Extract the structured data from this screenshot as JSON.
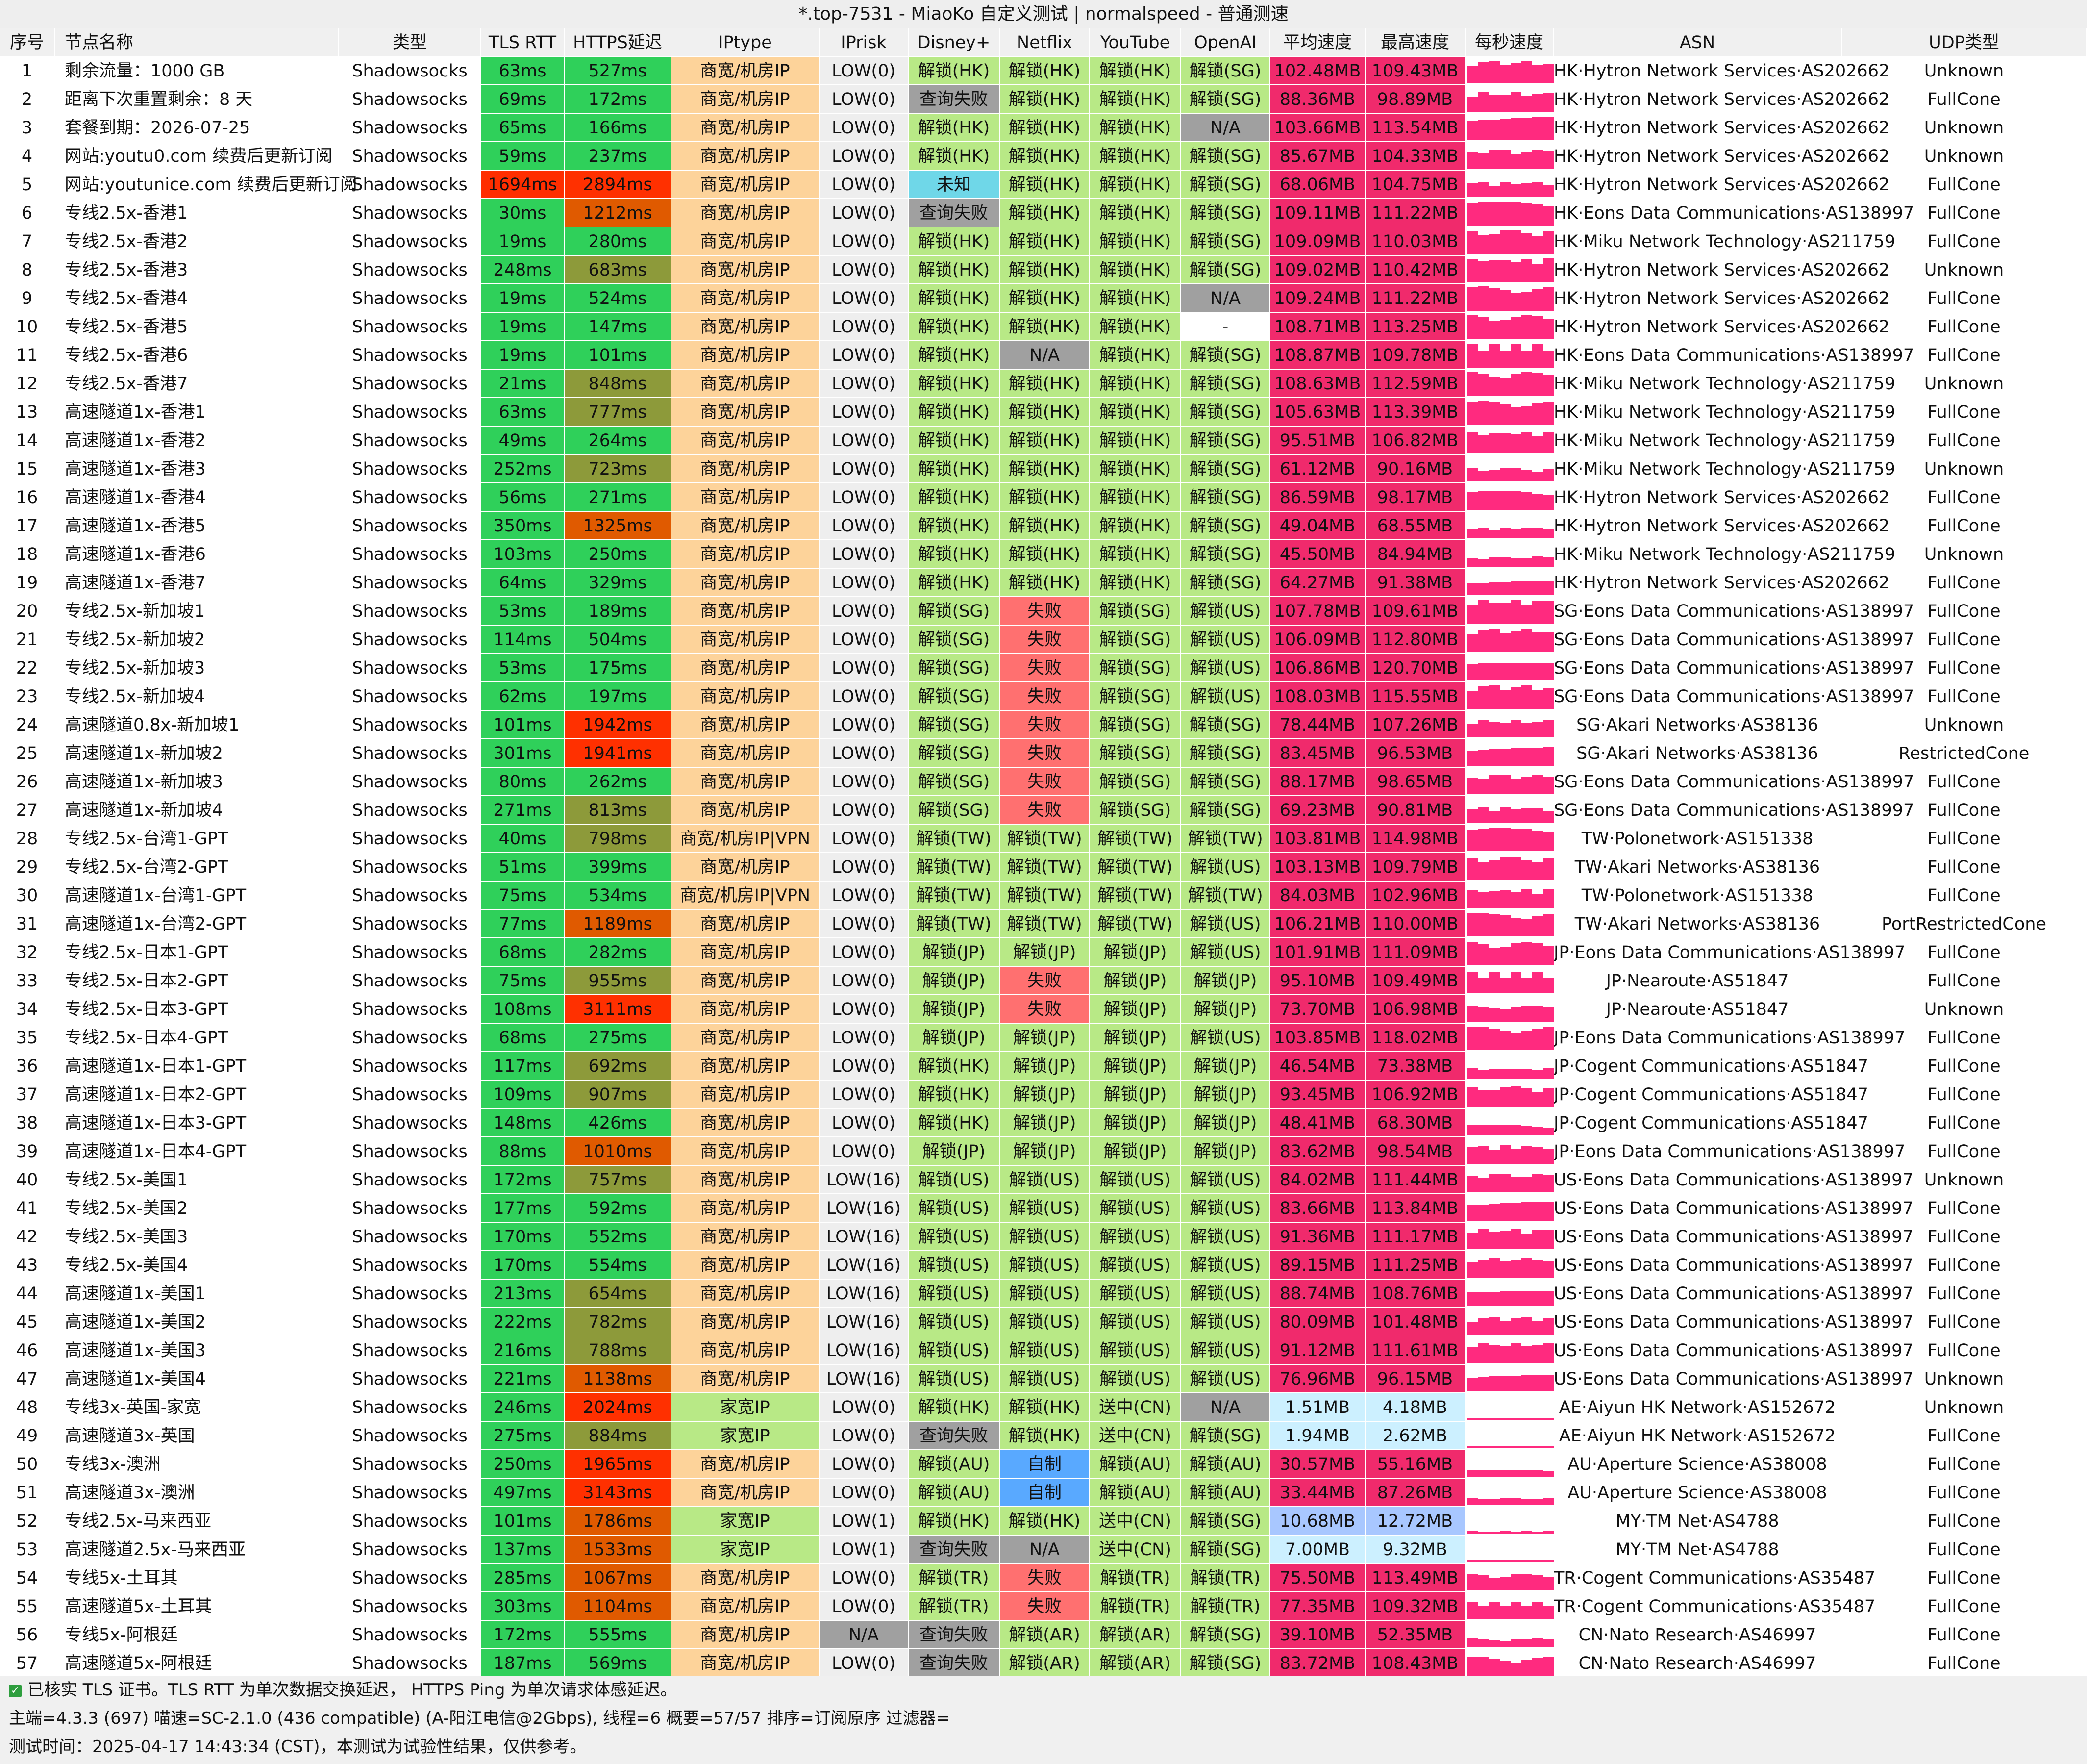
{
  "window_title": "*.top-7531 - MiaoKo 自定义测试 | normalspeed - 普通测速",
  "columns": [
    "序号",
    "节点名称",
    "类型",
    "TLS RTT",
    "HTTPS延迟",
    "IPtype",
    "IPrisk",
    "Disney+",
    "Netflix",
    "YouTube",
    "OpenAI",
    "平均速度",
    "最高速度",
    "每秒速度",
    "ASN",
    "UDP类型"
  ],
  "colors": {
    "green": "#2fd05a",
    "tlsRed": "#ff2e00",
    "httpsDark": "#8d9a3a",
    "httpsOrange": "#e05a00",
    "httpsRed": "#ff3000",
    "ipOrange": "#fdd39a",
    "ipGreen": "#b8e986",
    "lowGray": "#eeeeee",
    "unlock": "#b8e986",
    "fail": "#ff7070",
    "gray": "#a0a0a0",
    "unknown": "#6fd7e8",
    "speedPink": "#f02a6c",
    "speedLight": "#ccf0ff",
    "speedBlue": "#a8c7ff",
    "spark": "#ff2a7f"
  },
  "rows": [
    [
      "1",
      "剩余流量：1000 GB",
      "Shadowsocks",
      "63ms",
      "527ms",
      "商宽/机房IP",
      "LOW(0)",
      "解锁(HK)",
      "解锁(HK)",
      "解锁(HK)",
      "解锁(SG)",
      "102.48MB",
      "109.43MB",
      "",
      "HK·Hytron Network Services·AS202662",
      "Unknown"
    ],
    [
      "2",
      "距离下次重置剩余：8 天",
      "Shadowsocks",
      "69ms",
      "172ms",
      "商宽/机房IP",
      "LOW(0)",
      "查询失败",
      "解锁(HK)",
      "解锁(HK)",
      "解锁(SG)",
      "88.36MB",
      "98.89MB",
      "",
      "HK·Hytron Network Services·AS202662",
      "FullCone"
    ],
    [
      "3",
      "套餐到期：2026-07-25",
      "Shadowsocks",
      "65ms",
      "166ms",
      "商宽/机房IP",
      "LOW(0)",
      "解锁(HK)",
      "解锁(HK)",
      "解锁(HK)",
      "N/A",
      "103.66MB",
      "113.54MB",
      "",
      "HK·Hytron Network Services·AS202662",
      "Unknown"
    ],
    [
      "4",
      "网站:youtu0.com 续费后更新订阅",
      "Shadowsocks",
      "59ms",
      "237ms",
      "商宽/机房IP",
      "LOW(0)",
      "解锁(HK)",
      "解锁(HK)",
      "解锁(HK)",
      "解锁(SG)",
      "85.67MB",
      "104.33MB",
      "",
      "HK·Hytron Network Services·AS202662",
      "Unknown"
    ],
    [
      "5",
      "网站:youtunice.com 续费后更新订阅",
      "Shadowsocks",
      "1694ms",
      "2894ms",
      "商宽/机房IP",
      "LOW(0)",
      "未知",
      "解锁(HK)",
      "解锁(HK)",
      "解锁(SG)",
      "68.06MB",
      "104.75MB",
      "",
      "HK·Hytron Network Services·AS202662",
      "FullCone"
    ],
    [
      "6",
      "专线2.5x-香港1",
      "Shadowsocks",
      "30ms",
      "1212ms",
      "商宽/机房IP",
      "LOW(0)",
      "查询失败",
      "解锁(HK)",
      "解锁(HK)",
      "解锁(SG)",
      "109.11MB",
      "111.22MB",
      "",
      "HK·Eons Data Communications·AS138997",
      "FullCone"
    ],
    [
      "7",
      "专线2.5x-香港2",
      "Shadowsocks",
      "19ms",
      "280ms",
      "商宽/机房IP",
      "LOW(0)",
      "解锁(HK)",
      "解锁(HK)",
      "解锁(HK)",
      "解锁(SG)",
      "109.09MB",
      "110.03MB",
      "",
      "HK·Miku Network Technology·AS211759",
      "FullCone"
    ],
    [
      "8",
      "专线2.5x-香港3",
      "Shadowsocks",
      "248ms",
      "683ms",
      "商宽/机房IP",
      "LOW(0)",
      "解锁(HK)",
      "解锁(HK)",
      "解锁(HK)",
      "解锁(SG)",
      "109.02MB",
      "110.42MB",
      "",
      "HK·Hytron Network Services·AS202662",
      "Unknown"
    ],
    [
      "9",
      "专线2.5x-香港4",
      "Shadowsocks",
      "19ms",
      "524ms",
      "商宽/机房IP",
      "LOW(0)",
      "解锁(HK)",
      "解锁(HK)",
      "解锁(HK)",
      "N/A",
      "109.24MB",
      "111.22MB",
      "",
      "HK·Hytron Network Services·AS202662",
      "FullCone"
    ],
    [
      "10",
      "专线2.5x-香港5",
      "Shadowsocks",
      "19ms",
      "147ms",
      "商宽/机房IP",
      "LOW(0)",
      "解锁(HK)",
      "解锁(HK)",
      "解锁(HK)",
      "-",
      "108.71MB",
      "113.25MB",
      "",
      "HK·Hytron Network Services·AS202662",
      "FullCone"
    ],
    [
      "11",
      "专线2.5x-香港6",
      "Shadowsocks",
      "19ms",
      "101ms",
      "商宽/机房IP",
      "LOW(0)",
      "解锁(HK)",
      "N/A",
      "解锁(HK)",
      "解锁(SG)",
      "108.87MB",
      "109.78MB",
      "",
      "HK·Eons Data Communications·AS138997",
      "FullCone"
    ],
    [
      "12",
      "专线2.5x-香港7",
      "Shadowsocks",
      "21ms",
      "848ms",
      "商宽/机房IP",
      "LOW(0)",
      "解锁(HK)",
      "解锁(HK)",
      "解锁(HK)",
      "解锁(SG)",
      "108.63MB",
      "112.59MB",
      "",
      "HK·Miku Network Technology·AS211759",
      "Unknown"
    ],
    [
      "13",
      "高速隧道1x-香港1",
      "Shadowsocks",
      "63ms",
      "777ms",
      "商宽/机房IP",
      "LOW(0)",
      "解锁(HK)",
      "解锁(HK)",
      "解锁(HK)",
      "解锁(SG)",
      "105.63MB",
      "113.39MB",
      "",
      "HK·Miku Network Technology·AS211759",
      "FullCone"
    ],
    [
      "14",
      "高速隧道1x-香港2",
      "Shadowsocks",
      "49ms",
      "264ms",
      "商宽/机房IP",
      "LOW(0)",
      "解锁(HK)",
      "解锁(HK)",
      "解锁(HK)",
      "解锁(SG)",
      "95.51MB",
      "106.82MB",
      "",
      "HK·Miku Network Technology·AS211759",
      "FullCone"
    ],
    [
      "15",
      "高速隧道1x-香港3",
      "Shadowsocks",
      "252ms",
      "723ms",
      "商宽/机房IP",
      "LOW(0)",
      "解锁(HK)",
      "解锁(HK)",
      "解锁(HK)",
      "解锁(SG)",
      "61.12MB",
      "90.16MB",
      "",
      "HK·Miku Network Technology·AS211759",
      "Unknown"
    ],
    [
      "16",
      "高速隧道1x-香港4",
      "Shadowsocks",
      "56ms",
      "271ms",
      "商宽/机房IP",
      "LOW(0)",
      "解锁(HK)",
      "解锁(HK)",
      "解锁(HK)",
      "解锁(SG)",
      "86.59MB",
      "98.17MB",
      "",
      "HK·Hytron Network Services·AS202662",
      "FullCone"
    ],
    [
      "17",
      "高速隧道1x-香港5",
      "Shadowsocks",
      "350ms",
      "1325ms",
      "商宽/机房IP",
      "LOW(0)",
      "解锁(HK)",
      "解锁(HK)",
      "解锁(HK)",
      "解锁(SG)",
      "49.04MB",
      "68.55MB",
      "",
      "HK·Hytron Network Services·AS202662",
      "FullCone"
    ],
    [
      "18",
      "高速隧道1x-香港6",
      "Shadowsocks",
      "103ms",
      "250ms",
      "商宽/机房IP",
      "LOW(0)",
      "解锁(HK)",
      "解锁(HK)",
      "解锁(HK)",
      "解锁(SG)",
      "45.50MB",
      "84.94MB",
      "",
      "HK·Miku Network Technology·AS211759",
      "Unknown"
    ],
    [
      "19",
      "高速隧道1x-香港7",
      "Shadowsocks",
      "64ms",
      "329ms",
      "商宽/机房IP",
      "LOW(0)",
      "解锁(HK)",
      "解锁(HK)",
      "解锁(HK)",
      "解锁(SG)",
      "64.27MB",
      "91.38MB",
      "",
      "HK·Hytron Network Services·AS202662",
      "FullCone"
    ],
    [
      "20",
      "专线2.5x-新加坡1",
      "Shadowsocks",
      "53ms",
      "189ms",
      "商宽/机房IP",
      "LOW(0)",
      "解锁(SG)",
      "失败",
      "解锁(SG)",
      "解锁(US)",
      "107.78MB",
      "109.61MB",
      "",
      "SG·Eons Data Communications·AS138997",
      "FullCone"
    ],
    [
      "21",
      "专线2.5x-新加坡2",
      "Shadowsocks",
      "114ms",
      "504ms",
      "商宽/机房IP",
      "LOW(0)",
      "解锁(SG)",
      "失败",
      "解锁(SG)",
      "解锁(US)",
      "106.09MB",
      "112.80MB",
      "",
      "SG·Eons Data Communications·AS138997",
      "FullCone"
    ],
    [
      "22",
      "专线2.5x-新加坡3",
      "Shadowsocks",
      "53ms",
      "175ms",
      "商宽/机房IP",
      "LOW(0)",
      "解锁(SG)",
      "失败",
      "解锁(SG)",
      "解锁(US)",
      "106.86MB",
      "120.70MB",
      "",
      "SG·Eons Data Communications·AS138997",
      "FullCone"
    ],
    [
      "23",
      "专线2.5x-新加坡4",
      "Shadowsocks",
      "62ms",
      "197ms",
      "商宽/机房IP",
      "LOW(0)",
      "解锁(SG)",
      "失败",
      "解锁(SG)",
      "解锁(US)",
      "108.03MB",
      "115.55MB",
      "",
      "SG·Eons Data Communications·AS138997",
      "FullCone"
    ],
    [
      "24",
      "高速隧道0.8x-新加坡1",
      "Shadowsocks",
      "101ms",
      "1942ms",
      "商宽/机房IP",
      "LOW(0)",
      "解锁(SG)",
      "失败",
      "解锁(SG)",
      "解锁(SG)",
      "78.44MB",
      "107.26MB",
      "",
      "SG·Akari Networks·AS38136",
      "Unknown"
    ],
    [
      "25",
      "高速隧道1x-新加坡2",
      "Shadowsocks",
      "301ms",
      "1941ms",
      "商宽/机房IP",
      "LOW(0)",
      "解锁(SG)",
      "失败",
      "解锁(SG)",
      "解锁(SG)",
      "83.45MB",
      "96.53MB",
      "",
      "SG·Akari Networks·AS38136",
      "RestrictedCone"
    ],
    [
      "26",
      "高速隧道1x-新加坡3",
      "Shadowsocks",
      "80ms",
      "262ms",
      "商宽/机房IP",
      "LOW(0)",
      "解锁(SG)",
      "失败",
      "解锁(SG)",
      "解锁(SG)",
      "88.17MB",
      "98.65MB",
      "",
      "SG·Eons Data Communications·AS138997",
      "FullCone"
    ],
    [
      "27",
      "高速隧道1x-新加坡4",
      "Shadowsocks",
      "271ms",
      "813ms",
      "商宽/机房IP",
      "LOW(0)",
      "解锁(SG)",
      "失败",
      "解锁(SG)",
      "解锁(SG)",
      "69.23MB",
      "90.81MB",
      "",
      "SG·Eons Data Communications·AS138997",
      "FullCone"
    ],
    [
      "28",
      "专线2.5x-台湾1-GPT",
      "Shadowsocks",
      "40ms",
      "798ms",
      "商宽/机房IP|VPN",
      "LOW(0)",
      "解锁(TW)",
      "解锁(TW)",
      "解锁(TW)",
      "解锁(TW)",
      "103.81MB",
      "114.98MB",
      "",
      "TW·Polonetwork·AS151338",
      "FullCone"
    ],
    [
      "29",
      "专线2.5x-台湾2-GPT",
      "Shadowsocks",
      "51ms",
      "399ms",
      "商宽/机房IP",
      "LOW(0)",
      "解锁(TW)",
      "解锁(TW)",
      "解锁(TW)",
      "解锁(US)",
      "103.13MB",
      "109.79MB",
      "",
      "TW·Akari Networks·AS38136",
      "FullCone"
    ],
    [
      "30",
      "高速隧道1x-台湾1-GPT",
      "Shadowsocks",
      "75ms",
      "534ms",
      "商宽/机房IP|VPN",
      "LOW(0)",
      "解锁(TW)",
      "解锁(TW)",
      "解锁(TW)",
      "解锁(TW)",
      "84.03MB",
      "102.96MB",
      "",
      "TW·Polonetwork·AS151338",
      "FullCone"
    ],
    [
      "31",
      "高速隧道1x-台湾2-GPT",
      "Shadowsocks",
      "77ms",
      "1189ms",
      "商宽/机房IP",
      "LOW(0)",
      "解锁(TW)",
      "解锁(TW)",
      "解锁(TW)",
      "解锁(US)",
      "106.21MB",
      "110.00MB",
      "",
      "TW·Akari Networks·AS38136",
      "PortRestrictedCone"
    ],
    [
      "32",
      "专线2.5x-日本1-GPT",
      "Shadowsocks",
      "68ms",
      "282ms",
      "商宽/机房IP",
      "LOW(0)",
      "解锁(JP)",
      "解锁(JP)",
      "解锁(JP)",
      "解锁(US)",
      "101.91MB",
      "111.09MB",
      "",
      "JP·Eons Data Communications·AS138997",
      "FullCone"
    ],
    [
      "33",
      "专线2.5x-日本2-GPT",
      "Shadowsocks",
      "75ms",
      "955ms",
      "商宽/机房IP",
      "LOW(0)",
      "解锁(JP)",
      "失败",
      "解锁(JP)",
      "解锁(JP)",
      "95.10MB",
      "109.49MB",
      "",
      "JP·Nearoute·AS51847",
      "FullCone"
    ],
    [
      "34",
      "专线2.5x-日本3-GPT",
      "Shadowsocks",
      "108ms",
      "3111ms",
      "商宽/机房IP",
      "LOW(0)",
      "解锁(JP)",
      "失败",
      "解锁(JP)",
      "解锁(JP)",
      "73.70MB",
      "106.98MB",
      "",
      "JP·Nearoute·AS51847",
      "Unknown"
    ],
    [
      "35",
      "专线2.5x-日本4-GPT",
      "Shadowsocks",
      "68ms",
      "275ms",
      "商宽/机房IP",
      "LOW(0)",
      "解锁(JP)",
      "解锁(JP)",
      "解锁(JP)",
      "解锁(US)",
      "103.85MB",
      "118.02MB",
      "",
      "JP·Eons Data Communications·AS138997",
      "FullCone"
    ],
    [
      "36",
      "高速隧道1x-日本1-GPT",
      "Shadowsocks",
      "117ms",
      "692ms",
      "商宽/机房IP",
      "LOW(0)",
      "解锁(HK)",
      "解锁(JP)",
      "解锁(JP)",
      "解锁(JP)",
      "46.54MB",
      "73.38MB",
      "",
      "JP·Cogent Communications·AS51847",
      "FullCone"
    ],
    [
      "37",
      "高速隧道1x-日本2-GPT",
      "Shadowsocks",
      "109ms",
      "907ms",
      "商宽/机房IP",
      "LOW(0)",
      "解锁(HK)",
      "解锁(JP)",
      "解锁(JP)",
      "解锁(JP)",
      "93.45MB",
      "106.92MB",
      "",
      "JP·Cogent Communications·AS51847",
      "FullCone"
    ],
    [
      "38",
      "高速隧道1x-日本3-GPT",
      "Shadowsocks",
      "148ms",
      "426ms",
      "商宽/机房IP",
      "LOW(0)",
      "解锁(HK)",
      "解锁(JP)",
      "解锁(JP)",
      "解锁(JP)",
      "48.41MB",
      "68.30MB",
      "",
      "JP·Cogent Communications·AS51847",
      "FullCone"
    ],
    [
      "39",
      "高速隧道1x-日本4-GPT",
      "Shadowsocks",
      "88ms",
      "1010ms",
      "商宽/机房IP",
      "LOW(0)",
      "解锁(JP)",
      "解锁(JP)",
      "解锁(JP)",
      "解锁(JP)",
      "83.62MB",
      "98.54MB",
      "",
      "JP·Eons Data Communications·AS138997",
      "FullCone"
    ],
    [
      "40",
      "专线2.5x-美国1",
      "Shadowsocks",
      "172ms",
      "757ms",
      "商宽/机房IP",
      "LOW(16)",
      "解锁(US)",
      "解锁(US)",
      "解锁(US)",
      "解锁(US)",
      "84.02MB",
      "111.44MB",
      "",
      "US·Eons Data Communications·AS138997",
      "Unknown"
    ],
    [
      "41",
      "专线2.5x-美国2",
      "Shadowsocks",
      "177ms",
      "592ms",
      "商宽/机房IP",
      "LOW(16)",
      "解锁(US)",
      "解锁(US)",
      "解锁(US)",
      "解锁(US)",
      "83.66MB",
      "113.84MB",
      "",
      "US·Eons Data Communications·AS138997",
      "FullCone"
    ],
    [
      "42",
      "专线2.5x-美国3",
      "Shadowsocks",
      "170ms",
      "552ms",
      "商宽/机房IP",
      "LOW(16)",
      "解锁(US)",
      "解锁(US)",
      "解锁(US)",
      "解锁(US)",
      "91.36MB",
      "111.17MB",
      "",
      "US·Eons Data Communications·AS138997",
      "FullCone"
    ],
    [
      "43",
      "专线2.5x-美国4",
      "Shadowsocks",
      "170ms",
      "554ms",
      "商宽/机房IP",
      "LOW(16)",
      "解锁(US)",
      "解锁(US)",
      "解锁(US)",
      "解锁(US)",
      "89.15MB",
      "111.25MB",
      "",
      "US·Eons Data Communications·AS138997",
      "FullCone"
    ],
    [
      "44",
      "高速隧道1x-美国1",
      "Shadowsocks",
      "213ms",
      "654ms",
      "商宽/机房IP",
      "LOW(16)",
      "解锁(US)",
      "解锁(US)",
      "解锁(US)",
      "解锁(US)",
      "88.74MB",
      "108.76MB",
      "",
      "US·Eons Data Communications·AS138997",
      "FullCone"
    ],
    [
      "45",
      "高速隧道1x-美国2",
      "Shadowsocks",
      "222ms",
      "782ms",
      "商宽/机房IP",
      "LOW(16)",
      "解锁(US)",
      "解锁(US)",
      "解锁(US)",
      "解锁(US)",
      "80.09MB",
      "101.48MB",
      "",
      "US·Eons Data Communications·AS138997",
      "FullCone"
    ],
    [
      "46",
      "高速隧道1x-美国3",
      "Shadowsocks",
      "216ms",
      "788ms",
      "商宽/机房IP",
      "LOW(16)",
      "解锁(US)",
      "解锁(US)",
      "解锁(US)",
      "解锁(US)",
      "91.12MB",
      "111.61MB",
      "",
      "US·Eons Data Communications·AS138997",
      "FullCone"
    ],
    [
      "47",
      "高速隧道1x-美国4",
      "Shadowsocks",
      "221ms",
      "1138ms",
      "商宽/机房IP",
      "LOW(16)",
      "解锁(US)",
      "解锁(US)",
      "解锁(US)",
      "解锁(US)",
      "76.96MB",
      "96.15MB",
      "",
      "US·Eons Data Communications·AS138997",
      "Unknown"
    ],
    [
      "48",
      "专线3x-英国-家宽",
      "Shadowsocks",
      "246ms",
      "2024ms",
      "家宽IP",
      "LOW(0)",
      "解锁(HK)",
      "解锁(HK)",
      "送中(CN)",
      "N/A",
      "1.51MB",
      "4.18MB",
      "",
      "AE·Aiyun HK Network·AS152672",
      "Unknown"
    ],
    [
      "49",
      "高速隧道3x-英国",
      "Shadowsocks",
      "275ms",
      "884ms",
      "家宽IP",
      "LOW(0)",
      "查询失败",
      "解锁(HK)",
      "送中(CN)",
      "解锁(SG)",
      "1.94MB",
      "2.62MB",
      "",
      "AE·Aiyun HK Network·AS152672",
      "FullCone"
    ],
    [
      "50",
      "专线3x-澳洲",
      "Shadowsocks",
      "250ms",
      "1965ms",
      "商宽/机房IP",
      "LOW(0)",
      "解锁(AU)",
      "自制",
      "解锁(AU)",
      "解锁(AU)",
      "30.57MB",
      "55.16MB",
      "",
      "AU·Aperture Science·AS38008",
      "FullCone"
    ],
    [
      "51",
      "高速隧道3x-澳洲",
      "Shadowsocks",
      "497ms",
      "3143ms",
      "商宽/机房IP",
      "LOW(0)",
      "解锁(AU)",
      "自制",
      "解锁(AU)",
      "解锁(AU)",
      "33.44MB",
      "87.26MB",
      "",
      "AU·Aperture Science·AS38008",
      "FullCone"
    ],
    [
      "52",
      "专线2.5x-马来西亚",
      "Shadowsocks",
      "101ms",
      "1786ms",
      "家宽IP",
      "LOW(1)",
      "解锁(HK)",
      "解锁(HK)",
      "送中(CN)",
      "解锁(SG)",
      "10.68MB",
      "12.72MB",
      "",
      "MY·TM Net·AS4788",
      "FullCone"
    ],
    [
      "53",
      "高速隧道2.5x-马来西亚",
      "Shadowsocks",
      "137ms",
      "1533ms",
      "家宽IP",
      "LOW(1)",
      "查询失败",
      "N/A",
      "送中(CN)",
      "解锁(SG)",
      "7.00MB",
      "9.32MB",
      "",
      "MY·TM Net·AS4788",
      "FullCone"
    ],
    [
      "54",
      "专线5x-土耳其",
      "Shadowsocks",
      "285ms",
      "1067ms",
      "商宽/机房IP",
      "LOW(0)",
      "解锁(TR)",
      "失败",
      "解锁(TR)",
      "解锁(TR)",
      "75.50MB",
      "113.49MB",
      "",
      "TR·Cogent Communications·AS35487",
      "FullCone"
    ],
    [
      "55",
      "高速隧道5x-土耳其",
      "Shadowsocks",
      "303ms",
      "1104ms",
      "商宽/机房IP",
      "LOW(0)",
      "解锁(TR)",
      "失败",
      "解锁(TR)",
      "解锁(TR)",
      "77.35MB",
      "109.32MB",
      "",
      "TR·Cogent Communications·AS35487",
      "FullCone"
    ],
    [
      "56",
      "专线5x-阿根廷",
      "Shadowsocks",
      "172ms",
      "555ms",
      "商宽/机房IP",
      "N/A",
      "查询失败",
      "解锁(AR)",
      "解锁(AR)",
      "解锁(SG)",
      "39.10MB",
      "52.35MB",
      "",
      "CN·Nato Research·AS46997",
      "FullCone"
    ],
    [
      "57",
      "高速隧道5x-阿根廷",
      "Shadowsocks",
      "187ms",
      "569ms",
      "商宽/机房IP",
      "LOW(0)",
      "查询失败",
      "解锁(AR)",
      "解锁(AR)",
      "解锁(SG)",
      "83.72MB",
      "108.43MB",
      "",
      "CN·Nato Research·AS46997",
      "FullCone"
    ]
  ],
  "footer": {
    "line1": "已核实 TLS 证书。TLS RTT 为单次数据交换延迟， HTTPS Ping 为单次请求体感延迟。",
    "line2": "主端=4.3.3 (697) 喵速=SC-2.1.0 (436 compatible) (A-阳江电信@2Gbps), 线程=6 概要=57/57 排序=订阅原序 过滤器=",
    "line3": "测试时间：2025-04-17 14:43:34 (CST)，本测试为试验性结果，仅供参考。"
  }
}
